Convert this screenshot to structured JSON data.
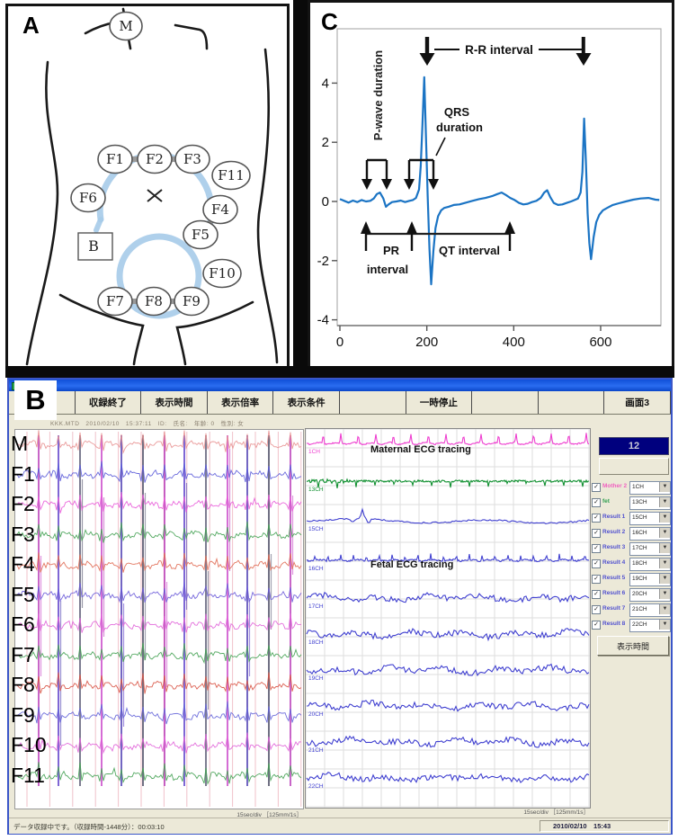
{
  "panels": {
    "a": "A",
    "b": "B",
    "c": "C"
  },
  "electrode_map": {
    "maternal": "M",
    "reference": "B",
    "fetal": [
      "F1",
      "F2",
      "F3",
      "F4",
      "F5",
      "F6",
      "F7",
      "F8",
      "F9",
      "F10",
      "F11"
    ]
  },
  "chart_data": {
    "type": "line",
    "title": "",
    "xlabel": "",
    "ylabel": "",
    "xlim": [
      0,
      770
    ],
    "ylim": [
      -4.6,
      5.9
    ],
    "xticks": [
      0,
      200,
      400,
      600
    ],
    "yticks": [
      4,
      2,
      0,
      -2,
      -4
    ],
    "grid": false,
    "line_color": "#1b74c4",
    "annotations": {
      "p_wave": "P-wave duration",
      "rr": "R-R interval",
      "qrs1": "QRS",
      "qrs2": "duration",
      "pr1": "PR",
      "pr2": "interval",
      "qt": "QT interval"
    },
    "points": [
      [
        0,
        0.08
      ],
      [
        10,
        0.02
      ],
      [
        20,
        -0.04
      ],
      [
        30,
        0.03
      ],
      [
        40,
        -0.02
      ],
      [
        50,
        0.05
      ],
      [
        60,
        0.0
      ],
      [
        70,
        0.02
      ],
      [
        78,
        0.1
      ],
      [
        85,
        0.25
      ],
      [
        92,
        0.3
      ],
      [
        100,
        0.1
      ],
      [
        106,
        -0.18
      ],
      [
        112,
        -0.1
      ],
      [
        120,
        -0.02
      ],
      [
        130,
        0.0
      ],
      [
        140,
        0.03
      ],
      [
        150,
        -0.02
      ],
      [
        160,
        0.02
      ],
      [
        168,
        0.05
      ],
      [
        175,
        0.12
      ],
      [
        182,
        0.4
      ],
      [
        186,
        1.2
      ],
      [
        190,
        2.6
      ],
      [
        194,
        4.2
      ],
      [
        198,
        2.2
      ],
      [
        202,
        0.2
      ],
      [
        206,
        -1.6
      ],
      [
        210,
        -2.8
      ],
      [
        215,
        -1.7
      ],
      [
        220,
        -0.9
      ],
      [
        226,
        -0.5
      ],
      [
        233,
        -0.3
      ],
      [
        240,
        -0.22
      ],
      [
        250,
        -0.18
      ],
      [
        262,
        -0.12
      ],
      [
        275,
        -0.1
      ],
      [
        290,
        -0.04
      ],
      [
        305,
        0.02
      ],
      [
        320,
        0.08
      ],
      [
        335,
        0.12
      ],
      [
        350,
        0.18
      ],
      [
        362,
        0.25
      ],
      [
        372,
        0.3
      ],
      [
        382,
        0.22
      ],
      [
        392,
        0.12
      ],
      [
        402,
        0.05
      ],
      [
        412,
        -0.05
      ],
      [
        422,
        -0.1
      ],
      [
        432,
        -0.08
      ],
      [
        442,
        -0.02
      ],
      [
        452,
        0.02
      ],
      [
        462,
        0.12
      ],
      [
        470,
        0.3
      ],
      [
        477,
        0.38
      ],
      [
        484,
        0.15
      ],
      [
        492,
        -0.05
      ],
      [
        502,
        -0.12
      ],
      [
        512,
        -0.1
      ],
      [
        522,
        -0.05
      ],
      [
        532,
        0.0
      ],
      [
        540,
        0.05
      ],
      [
        548,
        0.1
      ],
      [
        554,
        0.3
      ],
      [
        558,
        1.0
      ],
      [
        562,
        2.8
      ],
      [
        566,
        1.4
      ],
      [
        570,
        -0.4
      ],
      [
        574,
        -1.4
      ],
      [
        578,
        -1.95
      ],
      [
        584,
        -1.2
      ],
      [
        590,
        -0.7
      ],
      [
        597,
        -0.45
      ],
      [
        605,
        -0.3
      ],
      [
        615,
        -0.22
      ],
      [
        628,
        -0.12
      ],
      [
        642,
        -0.06
      ],
      [
        658,
        0.0
      ],
      [
        675,
        0.06
      ],
      [
        692,
        0.1
      ],
      [
        710,
        0.12
      ],
      [
        726,
        0.06
      ],
      [
        735,
        0.05
      ]
    ]
  },
  "recorder": {
    "toolbar": {
      "buttons": [
        "",
        "収録終了",
        "表示時間",
        "表示倍率",
        "表示条件",
        "",
        "一時停止",
        "",
        "",
        "画面3"
      ]
    },
    "patient_info": "KKK.MTD　2010/02/10　15:37:11　ID:　氏名:　年齢: 0　性別: 女",
    "left_chart": {
      "caption": "15sec/div ［125mm/1s］",
      "channels": [
        {
          "label": "M",
          "color": "#e89090"
        },
        {
          "label": "F1",
          "color": "#5858d8"
        },
        {
          "label": "F2",
          "color": "#e858d8"
        },
        {
          "label": "F3",
          "color": "#40a050"
        },
        {
          "label": "F4",
          "color": "#e06850"
        },
        {
          "label": "F5",
          "color": "#6858d8"
        },
        {
          "label": "F6",
          "color": "#e060d8"
        },
        {
          "label": "F7",
          "color": "#40a050"
        },
        {
          "label": "F8",
          "color": "#d85040"
        },
        {
          "label": "F9",
          "color": "#6060d8"
        },
        {
          "label": "F10",
          "color": "#e060d8"
        },
        {
          "label": "F11",
          "color": "#40a050"
        }
      ]
    },
    "right_chart": {
      "maternal_label": "Maternal ECG tracing",
      "fetal_label": "Fetal ECG tracing",
      "caption": "15sec/div ［125mm/1s］",
      "traces": [
        {
          "ch": "1CH",
          "color": "#ee3fd0",
          "type": "maternal"
        },
        {
          "ch": "13CH",
          "color": "#109030",
          "type": "green"
        },
        {
          "ch": "15CH",
          "color": "#4040d0",
          "type": "smooth"
        },
        {
          "ch": "16CH",
          "color": "#4040d0",
          "type": "fetal"
        },
        {
          "ch": "17CH",
          "color": "#4040d0",
          "type": "noisy"
        },
        {
          "ch": "18CH",
          "color": "#4040d0",
          "type": "noisy"
        },
        {
          "ch": "19CH",
          "color": "#4040d0",
          "type": "noisy"
        },
        {
          "ch": "20CH",
          "color": "#4040d0",
          "type": "noisy"
        },
        {
          "ch": "21CH",
          "color": "#4040d0",
          "type": "noisy"
        },
        {
          "ch": "22CH",
          "color": "#4040d0",
          "type": "noisy"
        }
      ]
    },
    "side_panel": {
      "display_value": "12",
      "disabled_button": "",
      "time_button": "表示時間",
      "rows": [
        {
          "label": "Mother 2",
          "color": "#f060c0",
          "ch": "1CH",
          "checked": true
        },
        {
          "label": "fet",
          "color": "#30a050",
          "ch": "13CH",
          "checked": true
        },
        {
          "label": "Result 1",
          "color": "#5050d0",
          "ch": "15CH",
          "checked": true
        },
        {
          "label": "Result 2",
          "color": "#5050d0",
          "ch": "16CH",
          "checked": true
        },
        {
          "label": "Result 3",
          "color": "#5050d0",
          "ch": "17CH",
          "checked": true
        },
        {
          "label": "Result 4",
          "color": "#5050d0",
          "ch": "18CH",
          "checked": true
        },
        {
          "label": "Result 5",
          "color": "#5050d0",
          "ch": "19CH",
          "checked": true
        },
        {
          "label": "Result 6",
          "color": "#5050d0",
          "ch": "20CH",
          "checked": true
        },
        {
          "label": "Result 7",
          "color": "#5050d0",
          "ch": "21CH",
          "checked": true
        },
        {
          "label": "Result 8",
          "color": "#5050d0",
          "ch": "22CH",
          "checked": true
        }
      ]
    },
    "status": {
      "left": "データ収録中です。（収録時間-1448分）：00:03:10",
      "right": "2010/02/10　15:43"
    }
  }
}
